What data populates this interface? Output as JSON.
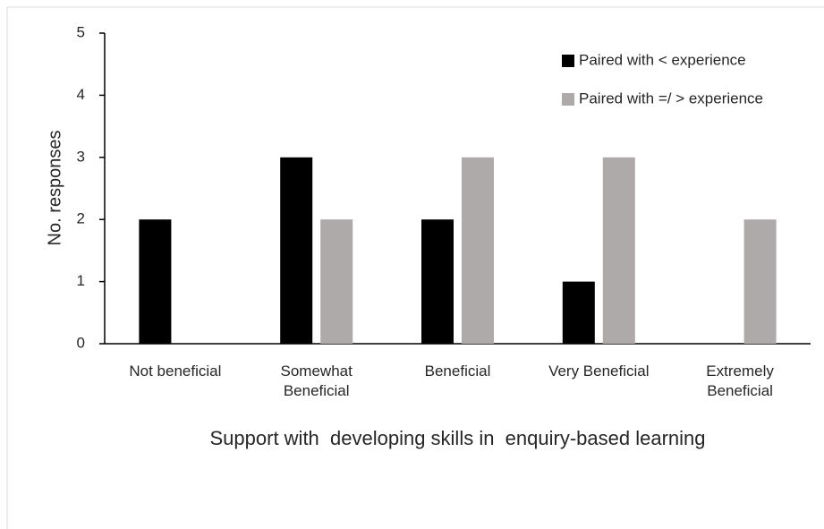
{
  "chart_data": {
    "type": "bar",
    "categories": [
      "Not beneficial",
      "Somewhat Beneficial",
      "Beneficial",
      "Very Beneficial",
      "Extremely Beneficial"
    ],
    "series": [
      {
        "name": "Paired with < experience",
        "color": "#000000",
        "values": [
          2,
          3,
          2,
          1,
          0
        ]
      },
      {
        "name": "Paired with =/ > experience",
        "color": "#aeaaaa",
        "values": [
          0,
          2,
          3,
          3,
          2
        ]
      }
    ],
    "x_label": "Support with  developing skills in  enquiry-based learning",
    "y_label": "No. responses",
    "ylim": [
      0,
      5
    ],
    "yticks": [
      0,
      1,
      2,
      3,
      4,
      5
    ],
    "grid": false,
    "legend": "top-right"
  }
}
